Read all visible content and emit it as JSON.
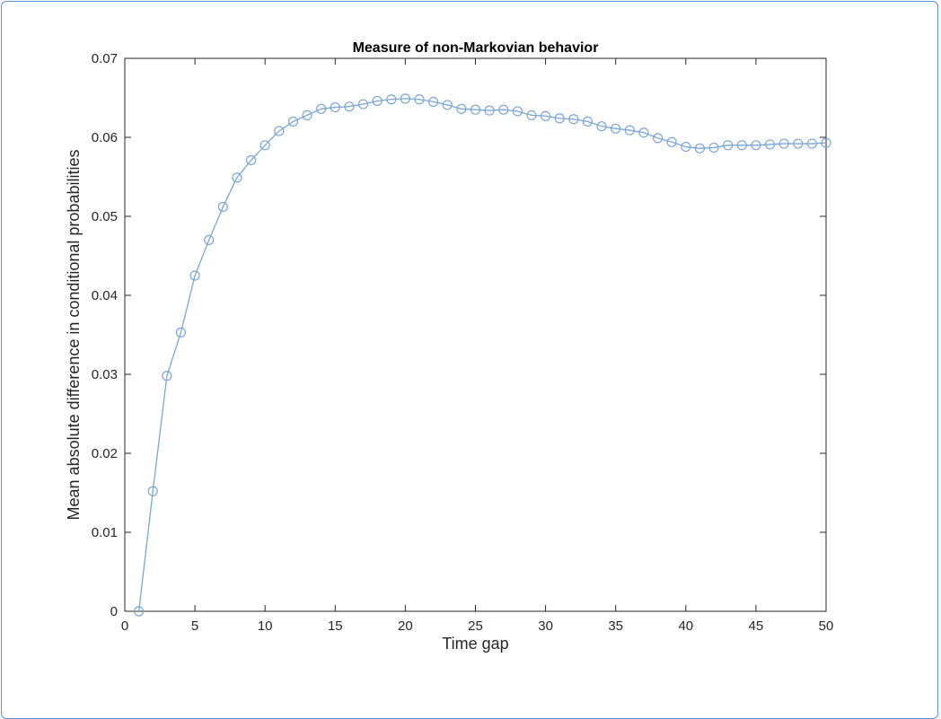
{
  "chart_data": {
    "type": "line",
    "title": "Measure of non-Markovian behavior",
    "xlabel": "Time gap",
    "ylabel": "Mean absolute difference in conditional probabilities",
    "xlim": [
      0,
      50
    ],
    "ylim": [
      0,
      0.07
    ],
    "xticks": [
      "0",
      "5",
      "10",
      "15",
      "20",
      "25",
      "30",
      "35",
      "40",
      "45",
      "50"
    ],
    "yticks": [
      "0",
      "0.01",
      "0.02",
      "0.03",
      "0.04",
      "0.05",
      "0.06",
      "0.07"
    ],
    "marker": "circle",
    "grid": false,
    "line_color": "#7aa6d6",
    "x": [
      1,
      2,
      3,
      4,
      5,
      6,
      7,
      8,
      9,
      10,
      11,
      12,
      13,
      14,
      15,
      16,
      17,
      18,
      19,
      20,
      21,
      22,
      23,
      24,
      25,
      26,
      27,
      28,
      29,
      30,
      31,
      32,
      33,
      34,
      35,
      36,
      37,
      38,
      39,
      40,
      41,
      42,
      43,
      44,
      45,
      46,
      47,
      48,
      49,
      50
    ],
    "y": [
      0.0,
      0.0152,
      0.0298,
      0.0353,
      0.0425,
      0.047,
      0.0512,
      0.0549,
      0.0571,
      0.059,
      0.0608,
      0.062,
      0.0628,
      0.0636,
      0.0638,
      0.0639,
      0.0642,
      0.0646,
      0.0648,
      0.0649,
      0.0648,
      0.0645,
      0.0641,
      0.0636,
      0.0635,
      0.0634,
      0.0635,
      0.0633,
      0.0628,
      0.0627,
      0.0624,
      0.0623,
      0.062,
      0.0614,
      0.0611,
      0.0609,
      0.0606,
      0.0599,
      0.0594,
      0.0588,
      0.0586,
      0.0587,
      0.059,
      0.059,
      0.059,
      0.0591,
      0.0592,
      0.0592,
      0.0592,
      0.0593
    ]
  }
}
